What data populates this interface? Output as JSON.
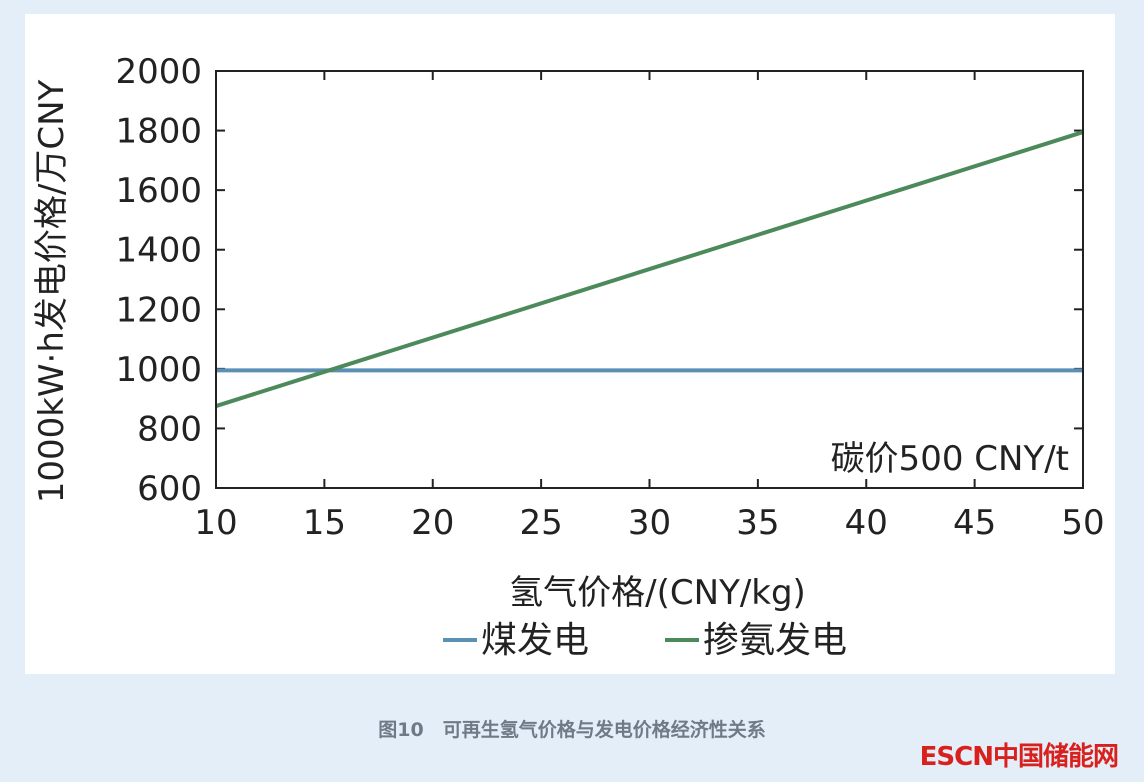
{
  "caption": "图10　可再生氢气价格与发电价格经济性关系",
  "watermark": "ESCN中国储能网",
  "colors": {
    "coal": "#5b8fb4",
    "ammonia": "#4c8a5b",
    "panel": "#ffffff",
    "background": "#e4eef8"
  },
  "chart_data": {
    "type": "line",
    "xlabel": "氢气价格/(CNY/kg)",
    "ylabel": "1000kW·h发电价格/万CNY",
    "xlim": [
      10,
      50
    ],
    "ylim": [
      600,
      2000
    ],
    "xticks": [
      10,
      15,
      20,
      25,
      30,
      35,
      40,
      45,
      50
    ],
    "yticks": [
      600,
      800,
      1000,
      1200,
      1400,
      1600,
      1800,
      2000
    ],
    "annotation": "碳价500 CNY/t",
    "legend_position": "bottom",
    "series": [
      {
        "name": "煤发电",
        "color": "#5b8fb4",
        "x": [
          10,
          50
        ],
        "y": [
          995,
          995
        ]
      },
      {
        "name": "掺氨发电",
        "color": "#4c8a5b",
        "x": [
          10,
          50
        ],
        "y": [
          875,
          1795
        ]
      }
    ]
  }
}
